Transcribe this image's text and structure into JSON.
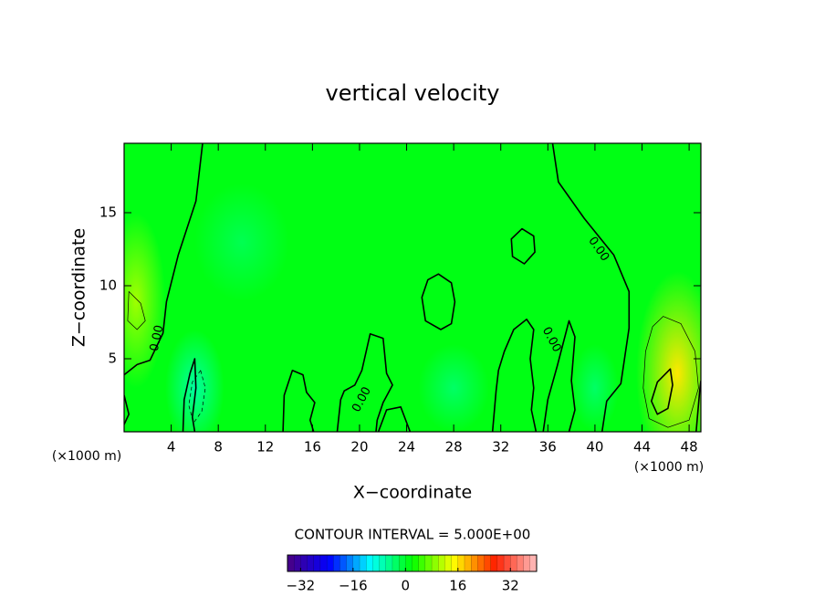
{
  "chart_data": {
    "type": "contour",
    "title": "vertical velocity",
    "x_label": "X−coordinate",
    "y_label": "Z−coordinate",
    "x_unit_left": "(×1000 m)",
    "x_unit_right": "(×1000 m)",
    "contour_interval": "CONTOUR INTERVAL = 5.000E+00",
    "xlim": [
      0,
      49
    ],
    "ylim": [
      0,
      19.75
    ],
    "xticks": [
      4,
      8,
      12,
      16,
      20,
      24,
      28,
      32,
      36,
      40,
      44,
      48
    ],
    "yticks": [
      5,
      10,
      15
    ],
    "background_value": 1,
    "field": [
      {
        "x": 1,
        "z": 9,
        "rx": 2.5,
        "rz": 6,
        "value": 10
      },
      {
        "x": 47,
        "z": 4,
        "rx": 3.5,
        "rz": 7,
        "value": 16
      },
      {
        "x": 6,
        "z": 3,
        "rx": 2.5,
        "rz": 4,
        "value": -6
      },
      {
        "x": 28,
        "z": 3,
        "rx": 3,
        "rz": 3,
        "value": -3
      },
      {
        "x": 10,
        "z": 13,
        "rx": 4,
        "rz": 4,
        "value": -2
      },
      {
        "x": 40,
        "z": 3,
        "rx": 2,
        "rz": 3,
        "value": -3
      }
    ],
    "contours": [
      {
        "level": 0,
        "closed": false,
        "points": [
          [
            6.67,
            19.75
          ],
          [
            6.1,
            15.8
          ],
          [
            4.6,
            12.1
          ],
          [
            3.6,
            8.9
          ],
          [
            3.3,
            6.75
          ],
          [
            2.2,
            4.9
          ],
          [
            1.1,
            4.6
          ],
          [
            0,
            3.9
          ]
        ]
      },
      {
        "level": 0,
        "closed": false,
        "points": [
          [
            36.4,
            19.75
          ],
          [
            36.9,
            17.1
          ],
          [
            39.1,
            14.6
          ],
          [
            41.6,
            12.1
          ],
          [
            42.9,
            9.6
          ],
          [
            42.9,
            7.1
          ],
          [
            42.2,
            3.3
          ],
          [
            41.0,
            2.1
          ],
          [
            40.6,
            0
          ]
        ]
      },
      {
        "level": 0,
        "closed": true,
        "points": [
          [
            26.7,
            10.8
          ],
          [
            27.8,
            10.2
          ],
          [
            28.1,
            8.9
          ],
          [
            27.8,
            7.4
          ],
          [
            26.9,
            7.0
          ],
          [
            25.6,
            7.6
          ],
          [
            25.3,
            9.2
          ],
          [
            25.8,
            10.4
          ]
        ]
      },
      {
        "level": 0,
        "closed": true,
        "points": [
          [
            33.8,
            13.9
          ],
          [
            34.8,
            13.4
          ],
          [
            34.9,
            12.3
          ],
          [
            34.0,
            11.5
          ],
          [
            33.0,
            12.0
          ],
          [
            32.9,
            13.2
          ]
        ]
      },
      {
        "level": 10,
        "closed": true,
        "points": [
          [
            46.4,
            4.3
          ],
          [
            46.6,
            3.2
          ],
          [
            46.2,
            1.6
          ],
          [
            45.3,
            1.2
          ],
          [
            44.8,
            2.1
          ],
          [
            45.3,
            3.4
          ]
        ]
      },
      {
        "level": 5,
        "closed": true,
        "points": [
          [
            45.8,
            7.9
          ],
          [
            47.3,
            7.4
          ],
          [
            48.5,
            5.5
          ],
          [
            48.8,
            3
          ],
          [
            48,
            0.8
          ],
          [
            46.2,
            0.3
          ],
          [
            44.6,
            0.9
          ],
          [
            44.1,
            3
          ],
          [
            44.3,
            5.5
          ],
          [
            44.9,
            7.2
          ]
        ]
      },
      {
        "level": 5,
        "closed": true,
        "points": [
          [
            0.4,
            9.6
          ],
          [
            1.4,
            8.8
          ],
          [
            1.8,
            7.6
          ],
          [
            1.1,
            7.0
          ],
          [
            0.3,
            7.6
          ]
        ]
      },
      {
        "level": -5,
        "closed": true,
        "points": [
          [
            6.5,
            4.2
          ],
          [
            6.9,
            3
          ],
          [
            6.6,
            1.4
          ],
          [
            5.9,
            0.6
          ],
          [
            5.5,
            1.8
          ],
          [
            5.8,
            3.4
          ]
        ]
      },
      {
        "level": 0,
        "closed": false,
        "points": [
          [
            13.5,
            0
          ],
          [
            13.6,
            2.5
          ],
          [
            14.3,
            4.2
          ],
          [
            15.2,
            3.9
          ],
          [
            15.5,
            2.7
          ],
          [
            16.2,
            2.0
          ],
          [
            15.8,
            0.8
          ],
          [
            16.1,
            0
          ]
        ]
      },
      {
        "level": 0,
        "closed": false,
        "points": [
          [
            21.6,
            0
          ],
          [
            22.3,
            1.5
          ],
          [
            23.5,
            1.7
          ],
          [
            24.3,
            0
          ]
        ]
      },
      {
        "level": 0,
        "closed": false,
        "points": [
          [
            31.3,
            0
          ],
          [
            31.6,
            2.8
          ],
          [
            31.8,
            4.2
          ],
          [
            32.3,
            5.5
          ],
          [
            33.1,
            7.0
          ],
          [
            34.2,
            7.7
          ],
          [
            34.8,
            7.0
          ],
          [
            34.5,
            5.0
          ],
          [
            34.8,
            3.0
          ],
          [
            34.6,
            1.5
          ],
          [
            35.0,
            0
          ]
        ]
      },
      {
        "level": 0,
        "closed": false,
        "points": [
          [
            35.6,
            0
          ],
          [
            36.0,
            2.2
          ],
          [
            36.8,
            4.5
          ],
          [
            37.8,
            7.6
          ],
          [
            38.3,
            6.5
          ],
          [
            38.0,
            3.5
          ],
          [
            38.3,
            1.5
          ],
          [
            37.8,
            0
          ]
        ]
      },
      {
        "level": 0,
        "closed": false,
        "points": [
          [
            18.1,
            0
          ],
          [
            18.4,
            2.2
          ],
          [
            18.7,
            2.8
          ],
          [
            19.6,
            3.2
          ],
          [
            20.2,
            4.2
          ],
          [
            20.9,
            6.7
          ],
          [
            22.0,
            6.4
          ],
          [
            22.3,
            4.0
          ],
          [
            22.8,
            3.2
          ],
          [
            22.0,
            2.0
          ],
          [
            21.5,
            0.8
          ],
          [
            21.4,
            0
          ]
        ]
      },
      {
        "level": 0,
        "closed": false,
        "points": [
          [
            5.0,
            0
          ],
          [
            5.1,
            2.2
          ],
          [
            5.6,
            4.0
          ],
          [
            6.0,
            5.0
          ],
          [
            6.1,
            3.0
          ],
          [
            5.8,
            1.0
          ],
          [
            6.0,
            0
          ]
        ]
      },
      {
        "level": 0,
        "closed": false,
        "points": [
          [
            0,
            2.5
          ],
          [
            0.4,
            1.2
          ],
          [
            0,
            0.5
          ]
        ]
      },
      {
        "level": 0,
        "closed": false,
        "points": [
          [
            48.6,
            0
          ],
          [
            48.9,
            2.8
          ],
          [
            49,
            3.5
          ]
        ]
      }
    ],
    "contour_labels": [
      {
        "text": "0.00",
        "x": 2.8,
        "z": 6.4
      },
      {
        "text": "0.00",
        "x": 40.3,
        "z": 12.5
      },
      {
        "text": "0.00",
        "x": 20.2,
        "z": 2.2
      },
      {
        "text": "0.00",
        "x": 36.3,
        "z": 6.3
      }
    ],
    "colorbar": {
      "clim": [
        -36,
        40
      ],
      "ticks": [
        {
          "value": -32,
          "label": "−32"
        },
        {
          "value": -16,
          "label": "−16"
        },
        0,
        16,
        32
      ],
      "colors": [
        "#4b0082",
        "#0000ff",
        "#00ffff",
        "#00ff00",
        "#ffff00",
        "#ff2000",
        "#ffc0c0"
      ]
    }
  }
}
